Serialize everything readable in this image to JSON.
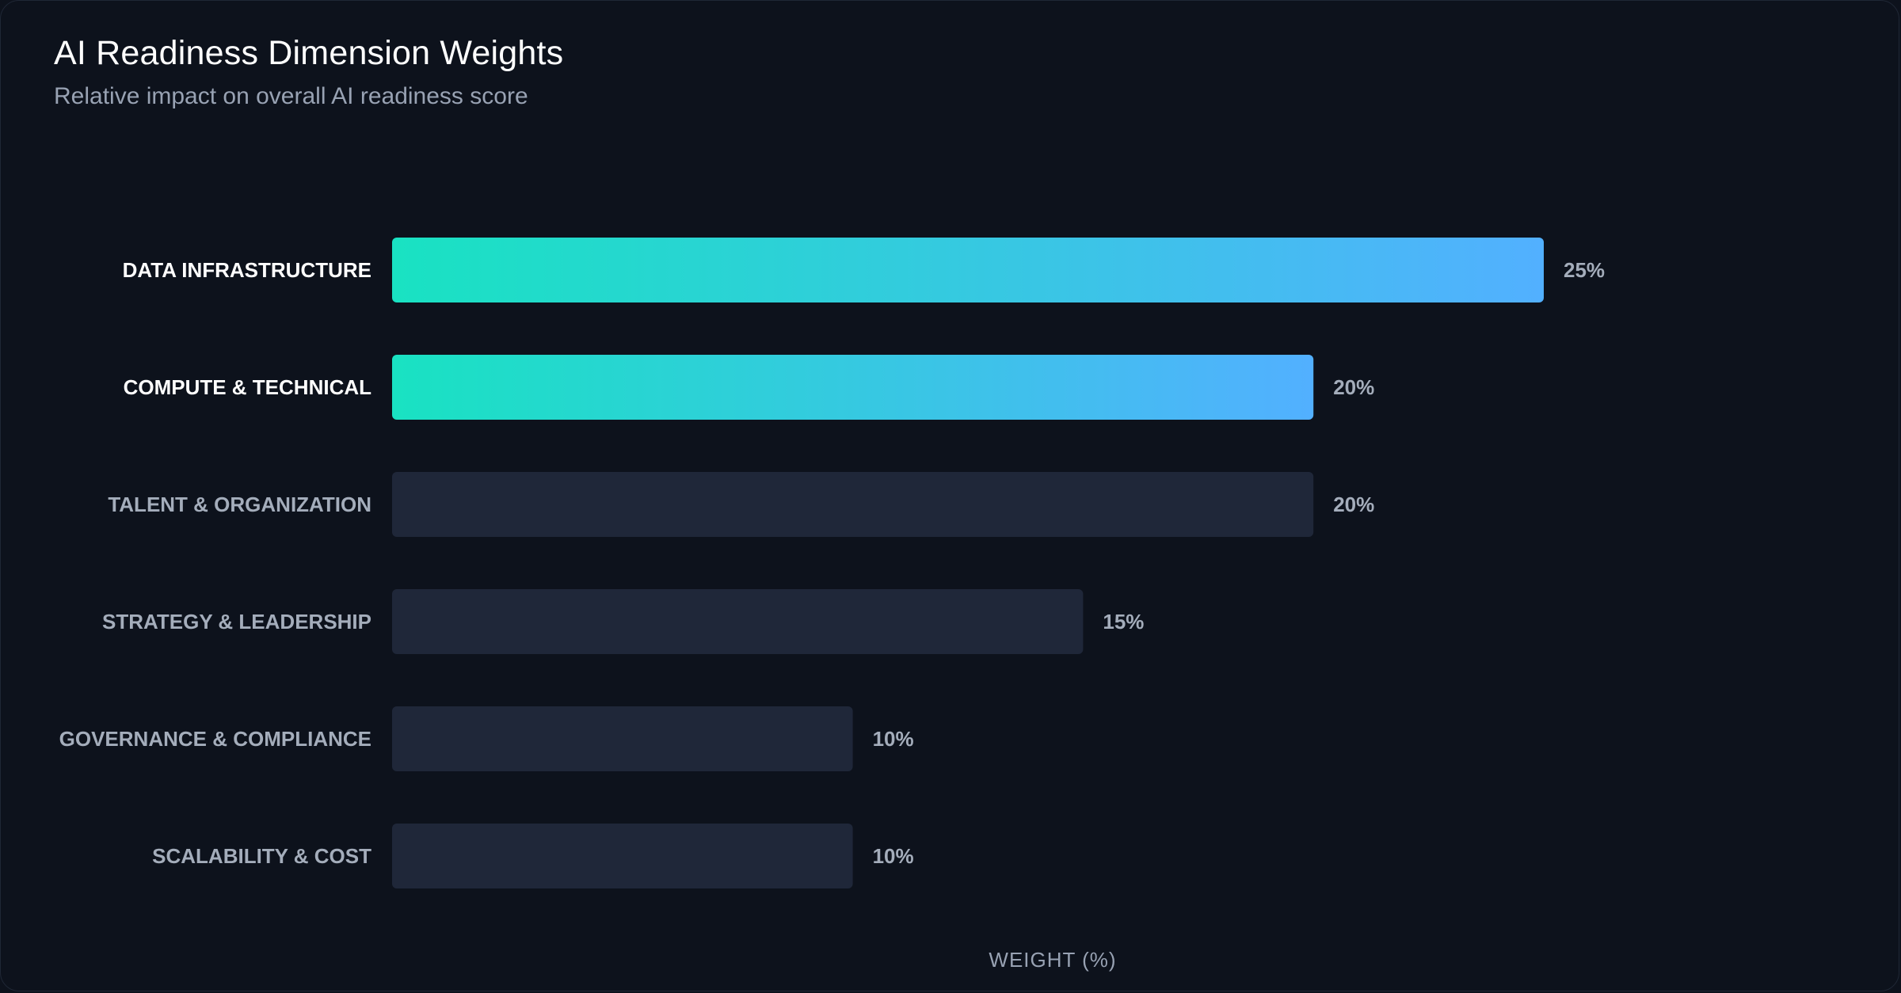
{
  "header": {
    "title": "AI Readiness Dimension Weights",
    "subtitle": "Relative impact on overall AI readiness score"
  },
  "colors": {
    "background": "#0d121c",
    "bar_muted": "#1f2739",
    "gradient_start": "#19e2c2",
    "gradient_end": "#52b0ff",
    "label_highlight": "#ffffff",
    "label_muted": "#a4adbb"
  },
  "chart_data": {
    "type": "bar",
    "orientation": "horizontal",
    "title": "AI Readiness Dimension Weights",
    "subtitle": "Relative impact on overall AI readiness score",
    "xlabel": "WEIGHT (%)",
    "ylabel": "",
    "xlim": [
      0,
      25
    ],
    "grid": false,
    "categories": [
      "DATA INFRASTRUCTURE",
      "COMPUTE & TECHNICAL",
      "TALENT & ORGANIZATION",
      "STRATEGY & LEADERSHIP",
      "GOVERNANCE & COMPLIANCE",
      "SCALABILITY & COST"
    ],
    "values": [
      25,
      20,
      20,
      15,
      10,
      10
    ],
    "value_labels": [
      "25%",
      "20%",
      "20%",
      "15%",
      "10%",
      "10%"
    ],
    "highlighted": [
      true,
      true,
      false,
      false,
      false,
      false
    ]
  }
}
